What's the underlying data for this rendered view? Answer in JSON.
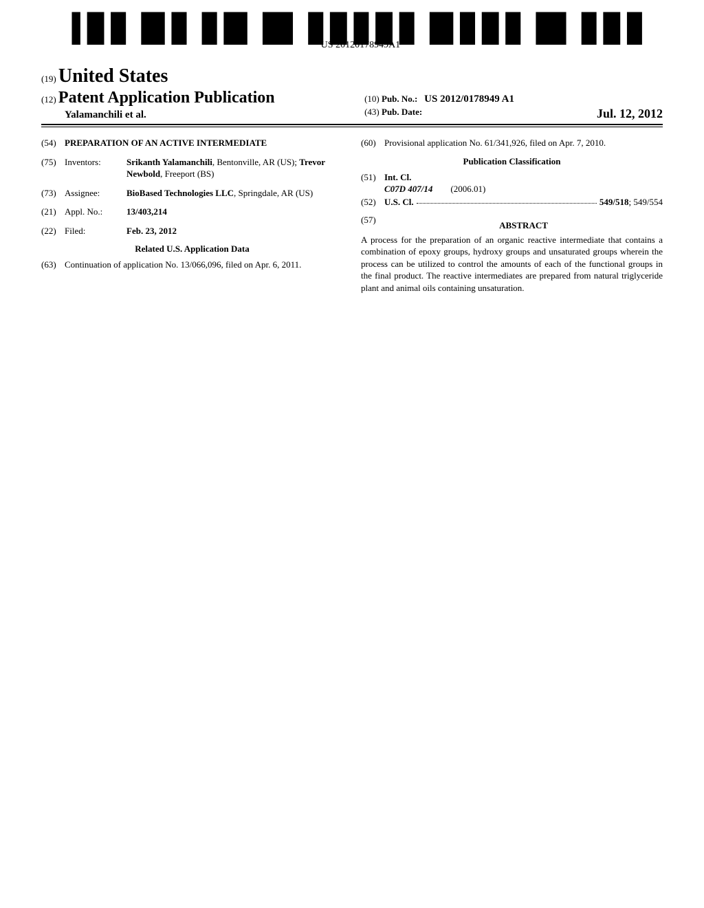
{
  "barcode": {
    "label": "US 20120178949A1"
  },
  "header": {
    "code19": "(19)",
    "country": "United States",
    "code12": "(12)",
    "docType": "Patent Application Publication",
    "authors": "Yalamanchili et al.",
    "code10": "(10)",
    "pubNoLabel": "Pub. No.:",
    "pubNo": "US 2012/0178949 A1",
    "code43": "(43)",
    "pubDateLabel": "Pub. Date:",
    "pubDate": "Jul. 12, 2012"
  },
  "fields": {
    "title": {
      "code": "(54)",
      "value": "PREPARATION OF AN ACTIVE INTERMEDIATE"
    },
    "inventors": {
      "code": "(75)",
      "label": "Inventors:",
      "value": "<b>Srikanth Yalamanchili</b>, Bentonville, AR (US); <b>Trevor Newbold</b>, Freeport (BS)"
    },
    "assignee": {
      "code": "(73)",
      "label": "Assignee:",
      "value": "<b>BioBased Technologies LLC</b>, Springdale, AR (US)"
    },
    "applNo": {
      "code": "(21)",
      "label": "Appl. No.:",
      "value": "13/403,214"
    },
    "filed": {
      "code": "(22)",
      "label": "Filed:",
      "value": "Feb. 23, 2012"
    },
    "relatedTitle": "Related U.S. Application Data",
    "continuation": {
      "code": "(63)",
      "value": "Continuation of application No. 13/066,096, filed on Apr. 6, 2011."
    },
    "provisional": {
      "code": "(60)",
      "value": "Provisional application No. 61/341,926, filed on Apr. 7, 2010."
    }
  },
  "classification": {
    "title": "Publication Classification",
    "intCl": {
      "code": "(51)",
      "label": "Int. Cl.",
      "class": "C07D 407/14",
      "date": "(2006.01)"
    },
    "usCl": {
      "code": "(52)",
      "label": "U.S. Cl.",
      "primary": "549/518",
      "secondary": "; 549/554"
    }
  },
  "abstract": {
    "code": "(57)",
    "title": "ABSTRACT",
    "text": "A process for the preparation of an organic reactive intermediate that contains a combination of epoxy groups, hydroxy groups and unsaturated groups wherein the process can be utilized to control the amounts of each of the functional groups in the final product. The reactive intermediates are prepared from natural triglyceride plant and animal oils containing unsaturation."
  }
}
